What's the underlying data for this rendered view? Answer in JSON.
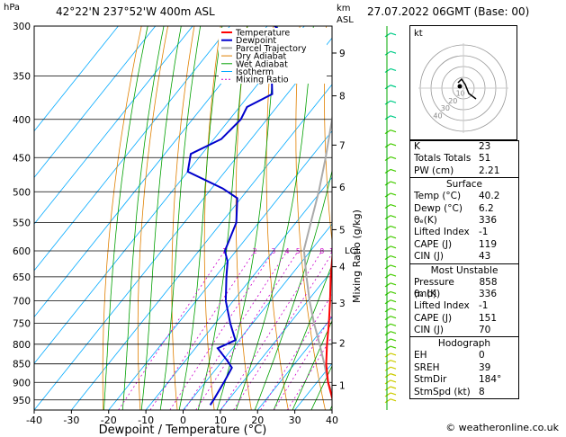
{
  "header": {
    "station": "42°22'N  237°52'W  400m  ASL",
    "datetime": "27.07.2022  06GMT  (Base: 00)",
    "unit_hpa": "hPa",
    "unit_km": "km",
    "unit_asl": "ASL"
  },
  "credit": "© weatheronline.co.uk",
  "chart_data": {
    "type": "skew-t",
    "xlabel": "Dewpoint / Temperature (°C)",
    "ylabel_right": "Mixing Ratio (g/kg)",
    "xlim": [
      -40,
      40
    ],
    "plim": [
      300,
      980
    ],
    "pressure_ticks": [
      300,
      350,
      400,
      450,
      500,
      550,
      600,
      650,
      700,
      750,
      800,
      850,
      900,
      950
    ],
    "temp_ticks": [
      -40,
      -30,
      -20,
      -10,
      0,
      10,
      20,
      30,
      40
    ],
    "km_ticks": [
      {
        "label": "1",
        "p": 908
      },
      {
        "label": "2",
        "p": 797
      },
      {
        "label": "3",
        "p": 705
      },
      {
        "label": "4",
        "p": 630
      },
      {
        "label": "5",
        "p": 562
      },
      {
        "label": "6",
        "p": 493
      },
      {
        "label": "7",
        "p": 433
      },
      {
        "label": "8",
        "p": 372
      },
      {
        "label": "9",
        "p": 326
      }
    ],
    "lcl": {
      "label": "LCL",
      "p": 598
    },
    "mixing_ratio_labels": [
      "1",
      "2",
      "3",
      "4",
      "5",
      "8",
      "10",
      "16",
      "20",
      "25"
    ],
    "mixing_ratio_values": [
      1,
      2,
      3,
      4,
      5,
      8,
      10,
      16,
      20,
      25
    ],
    "legend": [
      "Temperature",
      "Dewpoint",
      "Parcel Trajectory",
      "Dry Adiabat",
      "Wet Adiabat",
      "Isotherm",
      "Mixing Ratio"
    ],
    "colors": {
      "temperature": "#ff0000",
      "dewpoint": "#0000cc",
      "parcel": "#aaaaaa",
      "dry_adiabat": "#e08000",
      "wet_adiabat": "#00a000",
      "isotherm": "#00aaff",
      "mixing_ratio": "#cc00cc"
    },
    "temperature": [
      {
        "p": 965,
        "t": 40.2
      },
      {
        "p": 950,
        "t": 38
      },
      {
        "p": 900,
        "t": 33
      },
      {
        "p": 850,
        "t": 28.5
      },
      {
        "p": 800,
        "t": 24.5
      },
      {
        "p": 750,
        "t": 20.5
      },
      {
        "p": 700,
        "t": 16
      },
      {
        "p": 650,
        "t": 11
      },
      {
        "p": 600,
        "t": 6
      },
      {
        "p": 550,
        "t": 1.5
      },
      {
        "p": 500,
        "t": -4
      },
      {
        "p": 450,
        "t": -10
      },
      {
        "p": 400,
        "t": -17
      },
      {
        "p": 350,
        "t": -25.5
      },
      {
        "p": 320,
        "t": -31
      },
      {
        "p": 300,
        "t": -35
      }
    ],
    "dewpoint": [
      {
        "p": 965,
        "t": 6.2
      },
      {
        "p": 950,
        "t": 6
      },
      {
        "p": 900,
        "t": 5
      },
      {
        "p": 860,
        "t": 4
      },
      {
        "p": 840,
        "t": 1
      },
      {
        "p": 810,
        "t": -4
      },
      {
        "p": 790,
        "t": -1
      },
      {
        "p": 750,
        "t": -6
      },
      {
        "p": 700,
        "t": -12
      },
      {
        "p": 650,
        "t": -17
      },
      {
        "p": 620,
        "t": -20
      },
      {
        "p": 600,
        "t": -23
      },
      {
        "p": 550,
        "t": -26
      },
      {
        "p": 510,
        "t": -31
      },
      {
        "p": 495,
        "t": -37
      },
      {
        "p": 470,
        "t": -50
      },
      {
        "p": 445,
        "t": -53
      },
      {
        "p": 425,
        "t": -48
      },
      {
        "p": 400,
        "t": -47
      },
      {
        "p": 385,
        "t": -48
      },
      {
        "p": 370,
        "t": -44
      },
      {
        "p": 355,
        "t": -47
      },
      {
        "p": 340,
        "t": -42
      },
      {
        "p": 315,
        "t": -49
      },
      {
        "p": 300,
        "t": -58
      }
    ],
    "parcel": [
      {
        "p": 965,
        "t": 40.2
      },
      {
        "p": 900,
        "t": 33
      },
      {
        "p": 850,
        "t": 28
      },
      {
        "p": 800,
        "t": 22.5
      },
      {
        "p": 750,
        "t": 16.5
      },
      {
        "p": 700,
        "t": 10.5
      },
      {
        "p": 650,
        "t": 4.5
      },
      {
        "p": 598,
        "t": -2
      },
      {
        "p": 550,
        "t": -6
      },
      {
        "p": 500,
        "t": -10.5
      },
      {
        "p": 450,
        "t": -16
      },
      {
        "p": 400,
        "t": -22.5
      },
      {
        "p": 350,
        "t": -30
      },
      {
        "p": 300,
        "t": -39
      }
    ]
  },
  "hodograph": {
    "label": "kt",
    "ring_labels": [
      "10",
      "20",
      "30",
      "40"
    ]
  },
  "indices": [
    {
      "label": "K",
      "value": "23"
    },
    {
      "label": "Totals Totals",
      "value": "51"
    },
    {
      "label": "PW (cm)",
      "value": "2.21"
    }
  ],
  "surface": {
    "title": "Surface",
    "rows": [
      {
        "label": "Temp (°C)",
        "value": "40.2"
      },
      {
        "label": "Dewp (°C)",
        "value": "6.2"
      },
      {
        "label": "θₑ(K)",
        "value": "336"
      },
      {
        "label": "Lifted Index",
        "value": "-1"
      },
      {
        "label": "CAPE (J)",
        "value": "119"
      },
      {
        "label": "CIN (J)",
        "value": "43"
      }
    ]
  },
  "most_unstable": {
    "title": "Most Unstable",
    "rows": [
      {
        "label": "Pressure (mb)",
        "value": "858"
      },
      {
        "label": "θₑ (K)",
        "value": "336"
      },
      {
        "label": "Lifted Index",
        "value": "-1"
      },
      {
        "label": "CAPE (J)",
        "value": "151"
      },
      {
        "label": "CIN (J)",
        "value": "70"
      }
    ]
  },
  "hodograph_table": {
    "title": "Hodograph",
    "rows": [
      {
        "label": "EH",
        "value": "0"
      },
      {
        "label": "SREH",
        "value": "39"
      },
      {
        "label": "StmDir",
        "value": "184°"
      },
      {
        "label": "StmSpd (kt)",
        "value": "8"
      }
    ]
  }
}
